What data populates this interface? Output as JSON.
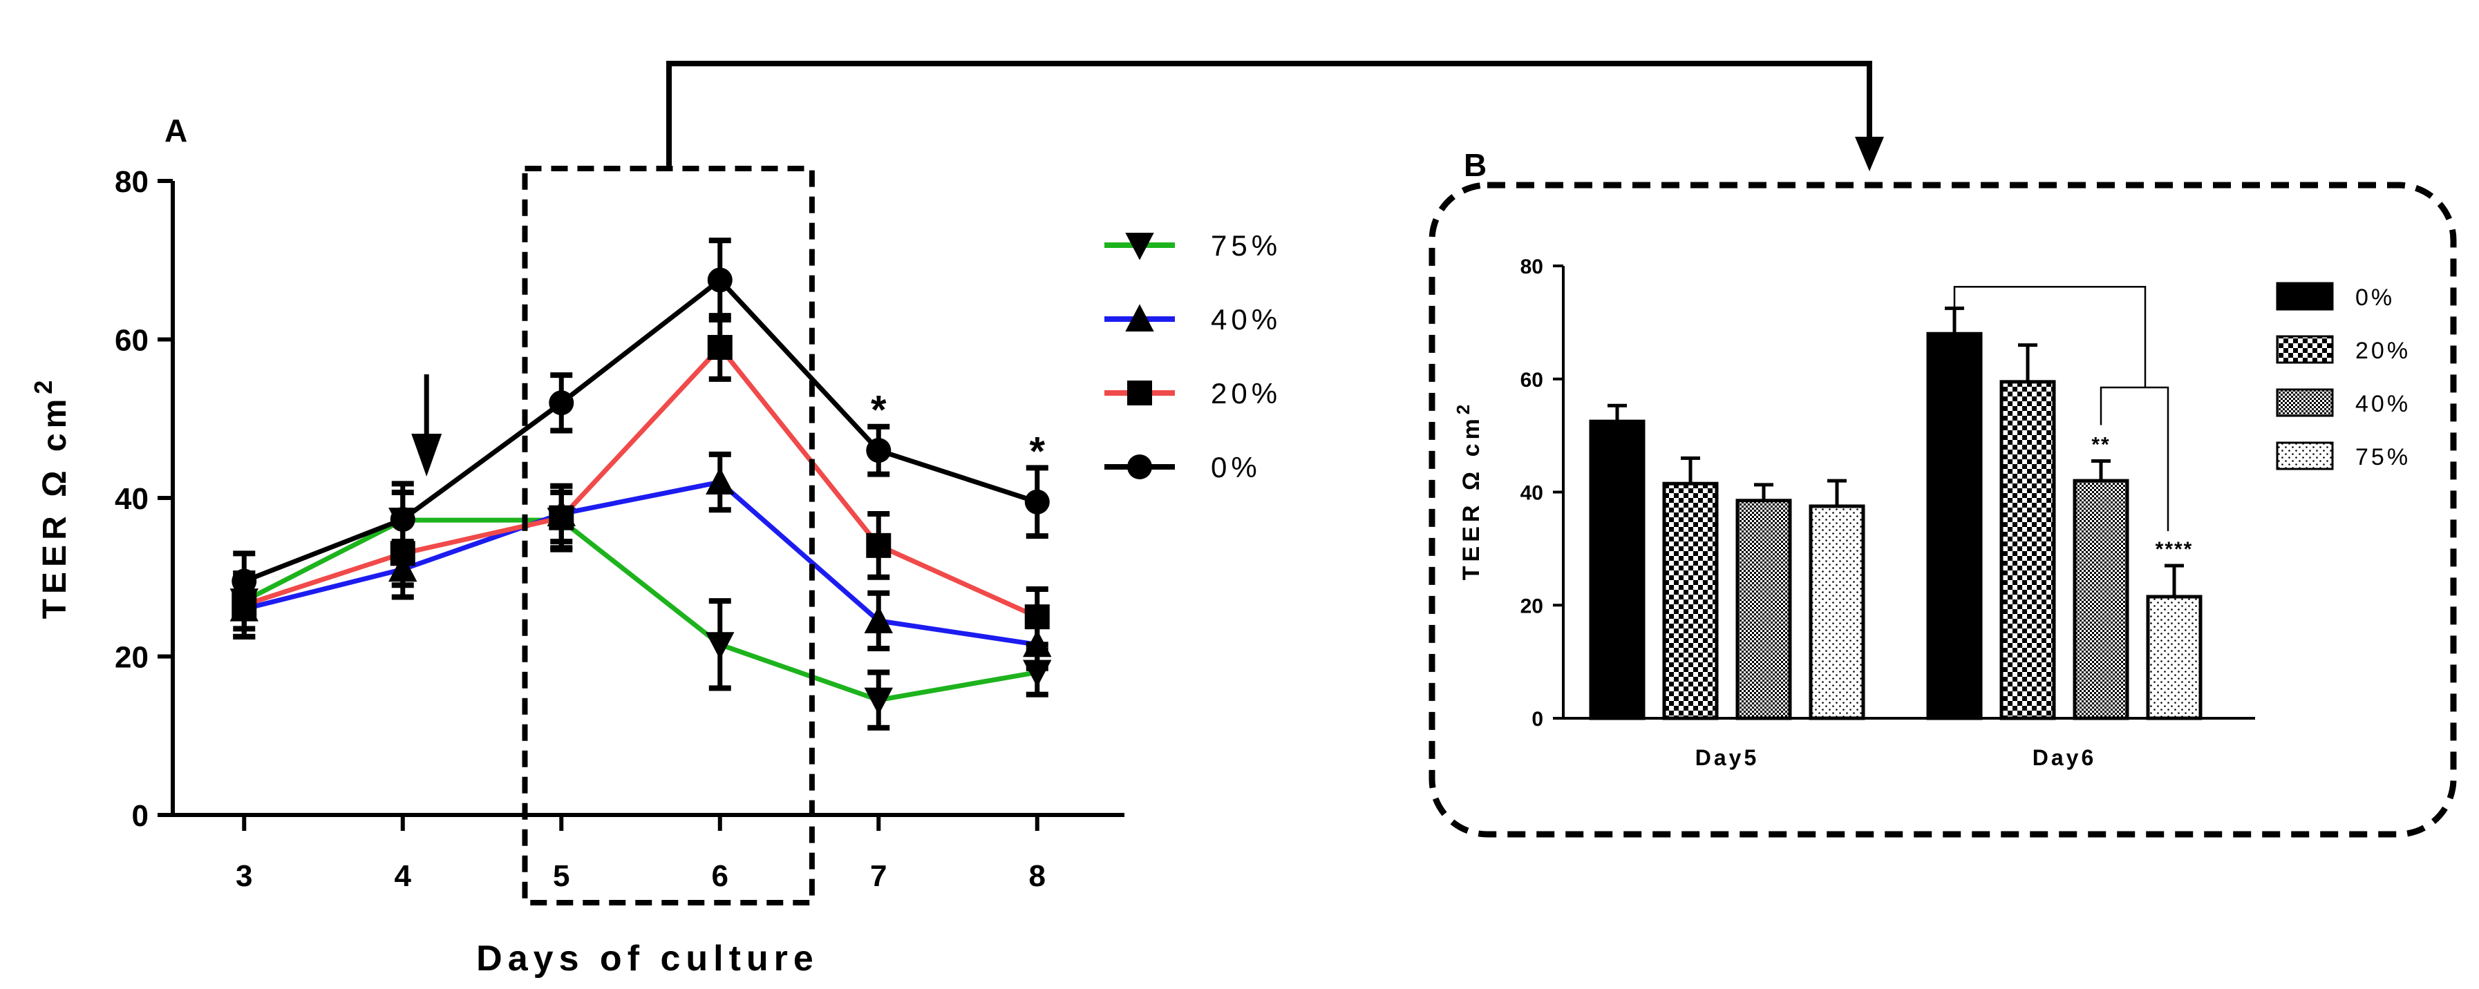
{
  "chart_data": [
    {
      "panel": "A",
      "type": "line",
      "xlabel": "Days of culture",
      "ylabel_main": "TEER Ω cm",
      "ylabel_sup": "2",
      "xlim": [
        2.55,
        8.55
      ],
      "ylim": [
        0,
        80
      ],
      "x_ticks": [
        3,
        4,
        5,
        6,
        7,
        8
      ],
      "y_ticks": [
        0,
        20,
        40,
        60,
        80
      ],
      "legend_position": "top-right",
      "series": [
        {
          "name": "75%",
          "color": "#1db31d",
          "marker": "triangle-down",
          "x": [
            3,
            4,
            5,
            6,
            7,
            8
          ],
          "y": [
            27,
            37.2,
            37.2,
            21.5,
            14.5,
            18
          ],
          "err": [
            3.5,
            3.5,
            3.5,
            5.5,
            3.5,
            2.8
          ]
        },
        {
          "name": "40%",
          "color": "#1c1cf0",
          "marker": "triangle-up",
          "x": [
            3,
            4,
            5,
            6,
            7,
            8
          ],
          "y": [
            26,
            31,
            38,
            42,
            24.5,
            21.5
          ],
          "err": [
            3.5,
            3.5,
            3.5,
            3.5,
            3.5,
            3.0
          ]
        },
        {
          "name": "20%",
          "color": "#f04a4a",
          "marker": "square",
          "x": [
            3,
            4,
            5,
            6,
            7,
            8
          ],
          "y": [
            26.5,
            33,
            37.5,
            59,
            34,
            25
          ],
          "err": [
            4,
            4,
            4,
            4,
            4,
            3.5
          ]
        },
        {
          "name": "0%",
          "color": "#000000",
          "marker": "circle",
          "x": [
            3,
            4,
            5,
            6,
            7,
            8
          ],
          "y": [
            29.5,
            37.3,
            52,
            67.5,
            46,
            39.5
          ],
          "err": [
            3.5,
            4.5,
            3.5,
            5,
            3,
            4.3
          ]
        }
      ],
      "annotations": [
        {
          "text": "*",
          "x": 7,
          "y": 46
        },
        {
          "text": "*",
          "x": 8,
          "y": 39.5
        }
      ],
      "arrow_at_x": 4.15,
      "highlight_box_x": [
        4.77,
        6.58
      ]
    },
    {
      "panel": "B",
      "type": "bar",
      "ylabel_main": "TEER Ω cm",
      "ylabel_sup": "2",
      "categories": [
        "Day5",
        "Day6"
      ],
      "ylim": [
        0,
        80
      ],
      "y_ticks": [
        0,
        20,
        40,
        60,
        80
      ],
      "legend_position": "right",
      "series": [
        {
          "name": "0%",
          "pattern": "solid",
          "values": [
            52.5,
            68
          ],
          "err": [
            2.8,
            4.5
          ]
        },
        {
          "name": "20%",
          "pattern": "checker",
          "values": [
            41.5,
            59.5
          ],
          "err": [
            4.5,
            6.5
          ]
        },
        {
          "name": "40%",
          "pattern": "dense",
          "values": [
            38.5,
            42
          ],
          "err": [
            2.8,
            3.5
          ]
        },
        {
          "name": "75%",
          "pattern": "dotted",
          "values": [
            37.5,
            21.5
          ],
          "err": [
            4.5,
            5.5
          ]
        }
      ],
      "significance": [
        {
          "category": "Day6",
          "series": "40%",
          "label": "**"
        },
        {
          "category": "Day6",
          "series": "75%",
          "label": "****"
        }
      ]
    }
  ]
}
